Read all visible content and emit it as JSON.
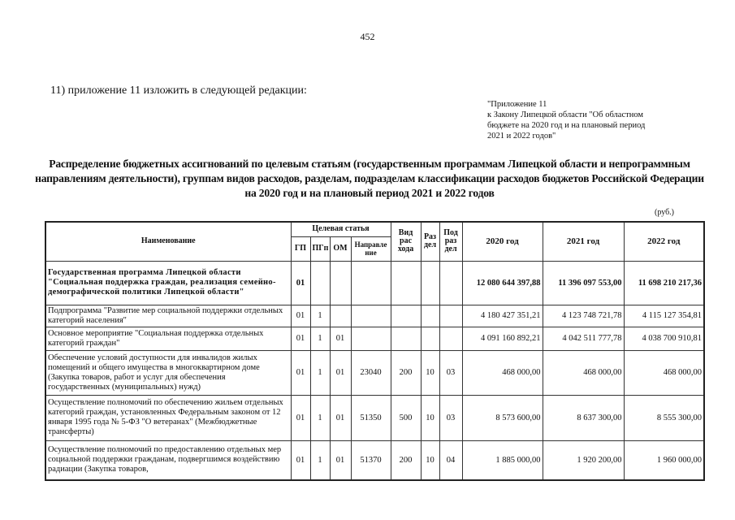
{
  "page_number": "452",
  "intro": "11) приложение 11 изложить в следующей редакции:",
  "appendix": [
    "\"Приложение  11",
    "к Закону Липецкой  области \"Об областном",
    "бюджете на 2020 год и на плановый период",
    "2021 и 2022 годов\""
  ],
  "title": "Распределение бюджетных ассигнований по целевым статьям (государственным программам Липецкой области и непрограммным направлениям деятельности), группам видов расходов, разделам, подразделам классификации расходов бюджетов Российской Федерации на 2020 год и на плановый период 2021 и 2022 годов",
  "unit": "(руб.)",
  "table": {
    "headers": {
      "name": "Наименование",
      "target": "Целевая статья",
      "gp": "ГП",
      "pgp": "ПГп",
      "om": "ОМ",
      "dir": "Направле ние",
      "vid": "Вид рас хода",
      "razdel": "Раз дел",
      "podrazdel": "Под раз дел",
      "y2020": "2020  год",
      "y2021": "2021  год",
      "y2022": "2022  год"
    },
    "rows": [
      {
        "name": "Государственная программа Липецкой области \"Социальная поддержка граждан, реализация семейно-демографической политики Липецкой области\"",
        "gp": "01",
        "pgp": "",
        "om": "",
        "dir": "",
        "vid": "",
        "razdel": "",
        "podrazdel": "",
        "y2020": "12 080 644 397,88",
        "y2021": "11 396 097 553,00",
        "y2022": "11 698 210 217,36"
      },
      {
        "name": "Подпрограмма \"Развитие мер социальной  поддержки отдельных категорий населения\"",
        "gp": "01",
        "pgp": "1",
        "om": "",
        "dir": "",
        "vid": "",
        "razdel": "",
        "podrazdel": "",
        "y2020": "4 180 427 351,21",
        "y2021": "4 123 748 721,78",
        "y2022": "4 115 127 354,81"
      },
      {
        "name": "Основное мероприятие \"Социальная  поддержка отдельных категорий граждан\"",
        "gp": "01",
        "pgp": "1",
        "om": "01",
        "dir": "",
        "vid": "",
        "razdel": "",
        "podrazdel": "",
        "y2020": "4 091 160 892,21",
        "y2021": "4 042 511 777,78",
        "y2022": "4 038 700 910,81"
      },
      {
        "name": "Обеспечение условий доступности для инвалидов жилых помещений и общего имущества в многоквартирном  доме (Закупка товаров, работ и услуг для обеспечения государственных (муниципальных)  нужд)",
        "gp": "01",
        "pgp": "1",
        "om": "01",
        "dir": "23040",
        "vid": "200",
        "razdel": "10",
        "podrazdel": "03",
        "y2020": "468 000,00",
        "y2021": "468 000,00",
        "y2022": "468 000,00"
      },
      {
        "name": "Осуществление полномочий  по обеспечению жильем отдельных категорий граждан, установленных Федеральным законом от 12 января 1995 года № 5-ФЗ \"О ветеранах\" (Межбюджетные трансферты)",
        "gp": "01",
        "pgp": "1",
        "om": "01",
        "dir": "51350",
        "vid": "500",
        "razdel": "10",
        "podrazdel": "03",
        "y2020": "8 573 600,00",
        "y2021": "8 637 300,00",
        "y2022": "8 555 300,00"
      },
      {
        "name": "Осуществление полномочий  по предоставлению отдельных мер социальной  поддержки гражданам, подвергшимся воздействию радиации (Закупка товаров,",
        "gp": "01",
        "pgp": "1",
        "om": "01",
        "dir": "51370",
        "vid": "200",
        "razdel": "10",
        "podrazdel": "04",
        "y2020": "1 885 000,00",
        "y2021": "1 920 200,00",
        "y2022": "1 960 000,00"
      }
    ]
  }
}
